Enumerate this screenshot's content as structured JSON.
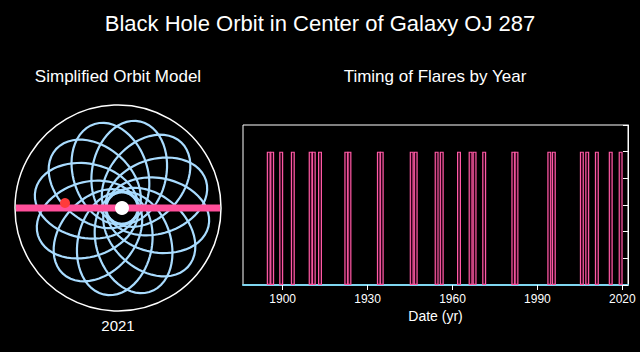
{
  "title": "Black Hole Orbit in Center of Galaxy OJ 287",
  "orbit_panel": {
    "title": "Simplified Orbit Model",
    "label": "2021"
  },
  "chart_data": {
    "type": "bar",
    "title": "Timing of Flares by Year",
    "x_label": "Date (yr)",
    "x": [
      1895.1,
      1896.3,
      1899.5,
      1903.6,
      1909.9,
      1911.0,
      1913.2,
      1922.5,
      1923.6,
      1934.0,
      1935.0,
      1945.6,
      1947.0,
      1954.4,
      1956.2,
      1962.3,
      1966.4,
      1967.8,
      1971.2,
      1981.5,
      1982.6,
      1994.2,
      1995.8,
      2005.7,
      2007.6,
      2011.0,
      2015.9,
      2019.4
    ],
    "values": [
      1,
      1,
      1,
      1,
      1,
      1,
      1,
      1,
      1,
      1,
      1,
      1,
      1,
      1,
      1,
      1,
      1,
      1,
      1,
      1,
      1,
      1,
      1,
      1,
      1,
      1,
      1,
      1
    ],
    "color": "#ff5aa5",
    "xlim": [
      1886,
      2022
    ],
    "xticks": [
      1900,
      1930,
      1960,
      1990,
      2020
    ],
    "ylim": [
      0,
      1.2
    ],
    "yticks": [
      0,
      0.2,
      0.4,
      0.6,
      0.8,
      1.0,
      1.2
    ],
    "tick_labels": "x",
    "grid": false
  }
}
